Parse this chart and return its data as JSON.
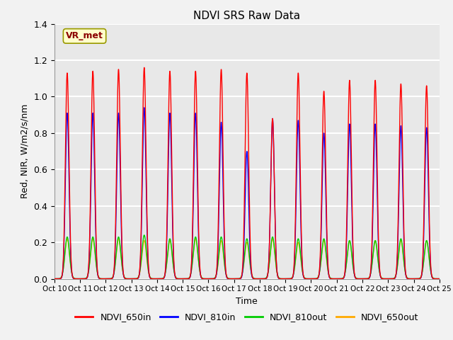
{
  "title": "NDVI SRS Raw Data",
  "xlabel": "Time",
  "ylabel": "Red, NIR, W/m2/s/nm",
  "ylim": [
    0.0,
    1.4
  ],
  "yticks": [
    0.0,
    0.2,
    0.4,
    0.6,
    0.8,
    1.0,
    1.2,
    1.4
  ],
  "xtick_labels": [
    "Oct 10",
    "Oct 11",
    "Oct 12",
    "Oct 13",
    "Oct 14",
    "Oct 15",
    "Oct 16",
    "Oct 17",
    "Oct 18",
    "Oct 19",
    "Oct 20",
    "Oct 21",
    "Oct 22",
    "Oct 23",
    "Oct 24",
    "Oct 25"
  ],
  "annotation_text": "VR_met",
  "colors": {
    "NDVI_650in": "#ff0000",
    "NDVI_810in": "#0000ff",
    "NDVI_810out": "#00cc00",
    "NDVI_650out": "#ffaa00"
  },
  "fig_facecolor": "#f2f2f2",
  "ax_facecolor": "#e8e8e8",
  "grid_color": "#ffffff",
  "peaks_650in": [
    1.13,
    1.14,
    1.15,
    1.16,
    1.14,
    1.14,
    1.15,
    1.13,
    0.88,
    1.13,
    1.03,
    1.09,
    1.09,
    1.07,
    1.06
  ],
  "peaks_810in": [
    0.91,
    0.91,
    0.91,
    0.94,
    0.91,
    0.91,
    0.86,
    0.7,
    0.88,
    0.87,
    0.8,
    0.85,
    0.85,
    0.84,
    0.83
  ],
  "peaks_810out": [
    0.23,
    0.23,
    0.23,
    0.24,
    0.22,
    0.23,
    0.23,
    0.22,
    0.23,
    0.22,
    0.22,
    0.21,
    0.21,
    0.22,
    0.21
  ],
  "peaks_650out": [
    0.22,
    0.22,
    0.22,
    0.21,
    0.21,
    0.22,
    0.21,
    0.2,
    0.22,
    0.2,
    0.21,
    0.21,
    0.21,
    0.21,
    0.21
  ]
}
